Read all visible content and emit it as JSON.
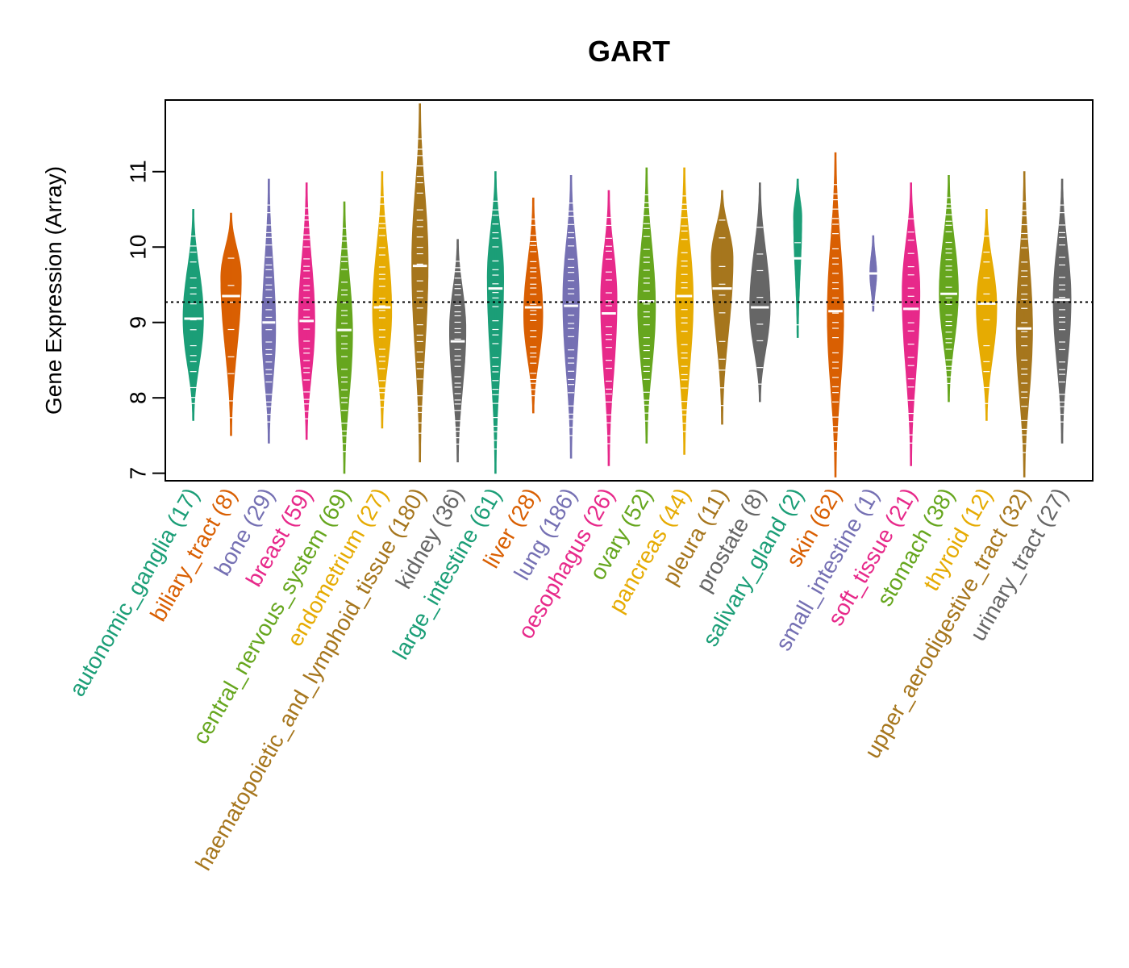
{
  "chart_data": {
    "type": "beanplot",
    "title": "GART",
    "xlabel": "",
    "ylabel": "Gene Expression (Array)",
    "ylim": [
      6.9,
      11.95
    ],
    "yticks": [
      7,
      8,
      9,
      10,
      11
    ],
    "overall_mean": 9.27,
    "grid": false,
    "series": [
      {
        "name": "autonomic_ganglia",
        "n": 17,
        "label": "autonomic_ganglia (17)",
        "color": "#1B9E77",
        "min": 7.7,
        "max": 10.5,
        "median": 9.05,
        "mode": 9.05,
        "width": 0.7
      },
      {
        "name": "biliary_tract",
        "n": 8,
        "label": "biliary_tract (8)",
        "color": "#D95F02",
        "min": 7.5,
        "max": 10.45,
        "median": 9.35,
        "mode": 9.6,
        "width": 0.7
      },
      {
        "name": "bone",
        "n": 29,
        "label": "bone (29)",
        "color": "#7570B3",
        "min": 7.4,
        "max": 10.9,
        "median": 9.0,
        "mode": 8.9,
        "width": 0.45
      },
      {
        "name": "breast",
        "n": 59,
        "label": "breast (59)",
        "color": "#E7298A",
        "min": 7.45,
        "max": 10.85,
        "median": 9.02,
        "mode": 9.0,
        "width": 0.55
      },
      {
        "name": "central_nervous_system",
        "n": 69,
        "label": "central_nervous_system (69)",
        "color": "#66A61E",
        "min": 7.0,
        "max": 10.6,
        "median": 8.9,
        "mode": 8.85,
        "width": 0.55
      },
      {
        "name": "endometrium",
        "n": 27,
        "label": "endometrium (27)",
        "color": "#E6AB02",
        "min": 7.6,
        "max": 11.0,
        "median": 9.2,
        "mode": 9.15,
        "width": 0.65
      },
      {
        "name": "haematopoietic_and_lymphoid_tissue",
        "n": 180,
        "label": "haematopoietic_and_lymphoid_tissue (180)",
        "color": "#A6761D",
        "min": 7.15,
        "max": 11.9,
        "median": 9.75,
        "mode": 9.8,
        "width": 0.55
      },
      {
        "name": "kidney",
        "n": 36,
        "label": "kidney (36)",
        "color": "#666666",
        "min": 7.15,
        "max": 10.1,
        "median": 8.75,
        "mode": 8.9,
        "width": 0.55
      },
      {
        "name": "large_intestine",
        "n": 61,
        "label": "large_intestine (61)",
        "color": "#1B9E77",
        "min": 7.0,
        "max": 11.0,
        "median": 9.45,
        "mode": 9.6,
        "width": 0.55
      },
      {
        "name": "liver",
        "n": 28,
        "label": "liver (28)",
        "color": "#D95F02",
        "min": 7.8,
        "max": 10.65,
        "median": 9.2,
        "mode": 9.1,
        "width": 0.65
      },
      {
        "name": "lung",
        "n": 186,
        "label": "lung (186)",
        "color": "#7570B3",
        "min": 7.2,
        "max": 10.95,
        "median": 9.22,
        "mode": 9.3,
        "width": 0.55
      },
      {
        "name": "oesophagus",
        "n": 26,
        "label": "oesophagus (26)",
        "color": "#E7298A",
        "min": 7.1,
        "max": 10.75,
        "median": 9.12,
        "mode": 9.3,
        "width": 0.55
      },
      {
        "name": "ovary",
        "n": 52,
        "label": "ovary (52)",
        "color": "#66A61E",
        "min": 7.4,
        "max": 11.05,
        "median": 9.28,
        "mode": 9.2,
        "width": 0.6
      },
      {
        "name": "pancreas",
        "n": 44,
        "label": "pancreas (44)",
        "color": "#E6AB02",
        "min": 7.25,
        "max": 11.05,
        "median": 9.35,
        "mode": 9.3,
        "width": 0.6
      },
      {
        "name": "pleura",
        "n": 11,
        "label": "pleura (11)",
        "color": "#A6761D",
        "min": 7.65,
        "max": 10.75,
        "median": 9.45,
        "mode": 9.85,
        "width": 0.75
      },
      {
        "name": "prostate",
        "n": 8,
        "label": "prostate (8)",
        "color": "#666666",
        "min": 7.95,
        "max": 10.85,
        "median": 9.2,
        "mode": 9.2,
        "width": 0.7
      },
      {
        "name": "salivary_gland",
        "n": 2,
        "label": "salivary_gland (2)",
        "color": "#1B9E77",
        "min": 8.8,
        "max": 10.9,
        "median": 9.85,
        "mode": 10.4,
        "width": 0.25
      },
      {
        "name": "skin",
        "n": 62,
        "label": "skin (62)",
        "color": "#D95F02",
        "min": 6.95,
        "max": 11.25,
        "median": 9.15,
        "mode": 9.1,
        "width": 0.55
      },
      {
        "name": "small_intestine",
        "n": 1,
        "label": "small_intestine (1)",
        "color": "#7570B3",
        "min": 9.15,
        "max": 10.15,
        "median": 9.65,
        "mode": 9.65,
        "width": 0.2
      },
      {
        "name": "soft_tissue",
        "n": 21,
        "label": "soft_tissue (21)",
        "color": "#E7298A",
        "min": 7.1,
        "max": 10.85,
        "median": 9.18,
        "mode": 9.4,
        "width": 0.6
      },
      {
        "name": "stomach",
        "n": 38,
        "label": "stomach (38)",
        "color": "#66A61E",
        "min": 7.95,
        "max": 10.95,
        "median": 9.38,
        "mode": 9.4,
        "width": 0.65
      },
      {
        "name": "thyroid",
        "n": 12,
        "label": "thyroid (12)",
        "color": "#E6AB02",
        "min": 7.7,
        "max": 10.5,
        "median": 9.25,
        "mode": 9.2,
        "width": 0.7
      },
      {
        "name": "upper_aerodigestive_tract",
        "n": 32,
        "label": "upper_aerodigestive_tract (32)",
        "color": "#A6761D",
        "min": 6.95,
        "max": 11.0,
        "median": 8.92,
        "mode": 8.9,
        "width": 0.55
      },
      {
        "name": "urinary_tract",
        "n": 27,
        "label": "urinary_tract (27)",
        "color": "#666666",
        "min": 7.4,
        "max": 10.9,
        "median": 9.3,
        "mode": 9.3,
        "width": 0.6
      }
    ]
  }
}
